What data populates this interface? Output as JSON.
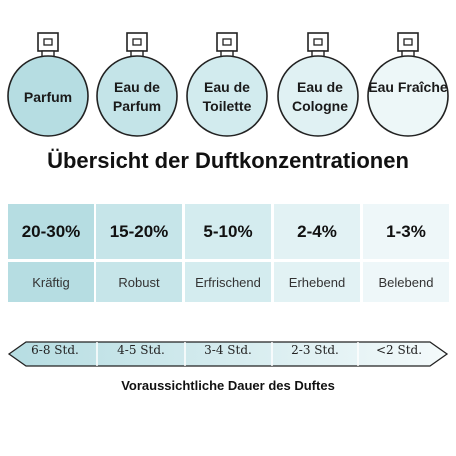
{
  "bottles": [
    {
      "label": "Parfum",
      "fill": "#b6dde2"
    },
    {
      "label": "Eau de Parfum",
      "fill": "#c4e4e8"
    },
    {
      "label": "Eau de Toilette",
      "fill": "#d2ebee"
    },
    {
      "label": "Eau de Cologne",
      "fill": "#e0f1f3"
    },
    {
      "label": "Eau Fraîche",
      "fill": "#edf7f8"
    }
  ],
  "title": "Übersicht der Duftkonzentrationen",
  "concentrations": [
    {
      "percent": "20-30%",
      "description": "Kräftig",
      "color": "#b6dde2"
    },
    {
      "percent": "15-20%",
      "description": "Robust",
      "color": "#c6e5e9"
    },
    {
      "percent": "5-10%",
      "description": "Erfrischend",
      "color": "#d4ecef"
    },
    {
      "percent": "2-4%",
      "description": "Erhebend",
      "color": "#e2f2f4"
    },
    {
      "percent": "1-3%",
      "description": "Belebend",
      "color": "#eef7f9"
    }
  ],
  "durations": [
    "6-8 Std.",
    "4-5 Std.",
    "3-4 Std.",
    "2-3 Std.",
    "<2 Std."
  ],
  "footer": "Voraussichtliche Dauer des Duftes"
}
